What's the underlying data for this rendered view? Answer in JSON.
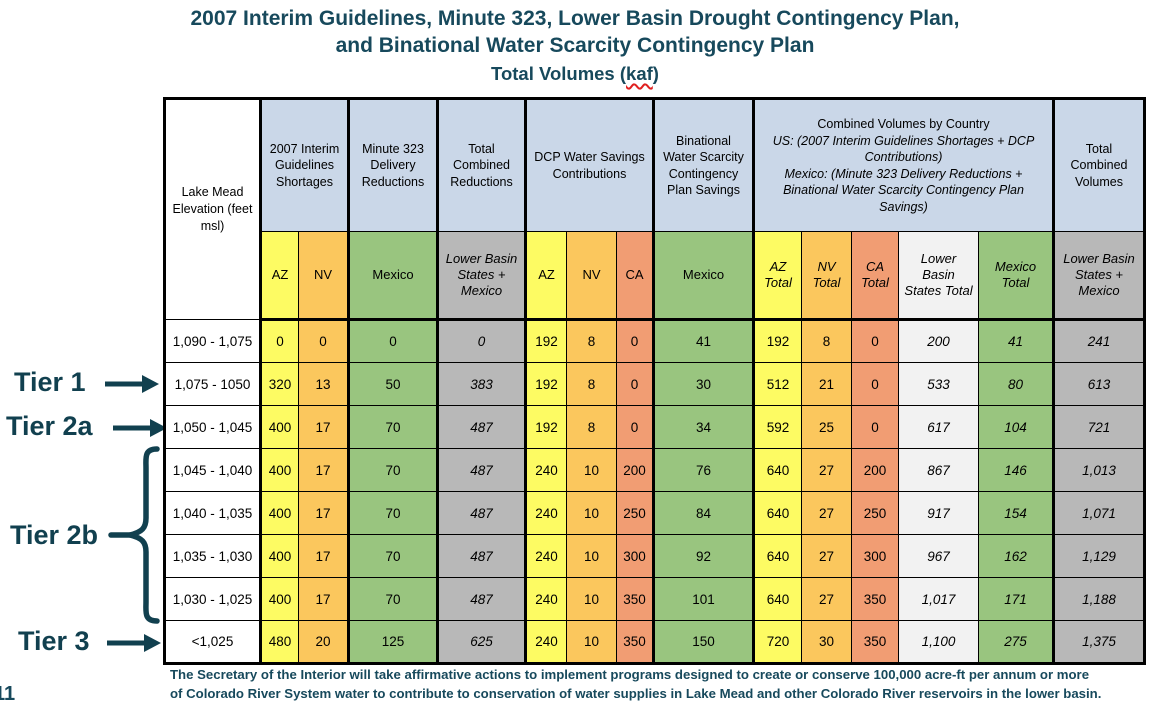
{
  "page": {
    "title_line1": "2007 Interim Guidelines, Minute 323, Lower Basin Drought Contingency Plan,",
    "title_line2": "and Binational Water Scarcity Contingency Plan",
    "subtitle_pre": "Total Volumes (",
    "subtitle_unit": "kaf",
    "subtitle_post": ")",
    "footer_line1": "The Secretary of the Interior will take affirmative actions to implement programs designed to create or conserve 100,000 acre-ft per annum or more",
    "footer_line2": "of Colorado River System water to contribute to conservation of water supplies in Lake Mead and other Colorado River reservoirs in the lower basin.",
    "page_number": "11"
  },
  "colors": {
    "title_teal": "#17495C",
    "tier_teal": "#11404F",
    "header_blue": "#CAD7E8",
    "az_yellow": "#FDFB63",
    "nv_orange": "#FBC75D",
    "mexico_green": "#99C57F",
    "ca_salmon": "#F19D73",
    "total_gray": "#B8B8B8",
    "lbs_total_lightgray": "#F2F2F2",
    "squiggle_red": "#E0201F",
    "border_black": "#000000"
  },
  "tiers": [
    {
      "label": "Tier 1",
      "marker": "arrow"
    },
    {
      "label": "Tier 2a",
      "marker": "arrow"
    },
    {
      "label": "Tier 2b",
      "marker": "brace"
    },
    {
      "label": "Tier 3",
      "marker": "arrow"
    }
  ],
  "table": {
    "corner_header": "Lake Mead Elevation (feet msl)",
    "group_headers": {
      "shortages": "2007 Interim Guidelines Shortages",
      "minute323": "Minute 323 Delivery Reductions",
      "total_combined_reductions": "Total Combined Reductions",
      "dcp": "DCP Water Savings Contributions",
      "binational": "Binational Water Scarcity Contingency Plan Savings",
      "combined_line1": "Combined Volumes by Country",
      "combined_line2": "US: (2007 Interim Guidelines Shortages + DCP Contributions)",
      "combined_line3": "Mexico: (Minute 323 Delivery Reductions + Binational Water Scarcity Contingency Plan Savings)",
      "total_combined_volumes": "Total Combined Volumes"
    },
    "subheaders": [
      "AZ",
      "NV",
      "Mexico",
      "Lower Basin States + Mexico",
      "AZ",
      "NV",
      "CA",
      "Mexico",
      "AZ Total",
      "NV Total",
      "CA Total",
      "Lower Basin States Total",
      "Mexico Total",
      "Lower Basin States + Mexico"
    ],
    "rows": [
      {
        "elevation": "1,090 - 1,075",
        "values": [
          "0",
          "0",
          "0",
          "0",
          "192",
          "8",
          "0",
          "41",
          "192",
          "8",
          "0",
          "200",
          "41",
          "241"
        ]
      },
      {
        "elevation": "1,075 - 1050",
        "values": [
          "320",
          "13",
          "50",
          "383",
          "192",
          "8",
          "0",
          "30",
          "512",
          "21",
          "0",
          "533",
          "80",
          "613"
        ]
      },
      {
        "elevation": "1,050 - 1,045",
        "values": [
          "400",
          "17",
          "70",
          "487",
          "192",
          "8",
          "0",
          "34",
          "592",
          "25",
          "0",
          "617",
          "104",
          "721"
        ]
      },
      {
        "elevation": "1,045 - 1,040",
        "values": [
          "400",
          "17",
          "70",
          "487",
          "240",
          "10",
          "200",
          "76",
          "640",
          "27",
          "200",
          "867",
          "146",
          "1,013"
        ]
      },
      {
        "elevation": "1,040 - 1,035",
        "values": [
          "400",
          "17",
          "70",
          "487",
          "240",
          "10",
          "250",
          "84",
          "640",
          "27",
          "250",
          "917",
          "154",
          "1,071"
        ]
      },
      {
        "elevation": "1,035 - 1,030",
        "values": [
          "400",
          "17",
          "70",
          "487",
          "240",
          "10",
          "300",
          "92",
          "640",
          "27",
          "300",
          "967",
          "162",
          "1,129"
        ]
      },
      {
        "elevation": "1,030 - 1,025",
        "values": [
          "400",
          "17",
          "70",
          "487",
          "240",
          "10",
          "350",
          "101",
          "640",
          "27",
          "350",
          "1,017",
          "171",
          "1,188"
        ]
      },
      {
        "elevation": "<1,025",
        "values": [
          "480",
          "20",
          "125",
          "625",
          "240",
          "10",
          "350",
          "150",
          "720",
          "30",
          "350",
          "1,100",
          "275",
          "1,375"
        ]
      }
    ]
  }
}
